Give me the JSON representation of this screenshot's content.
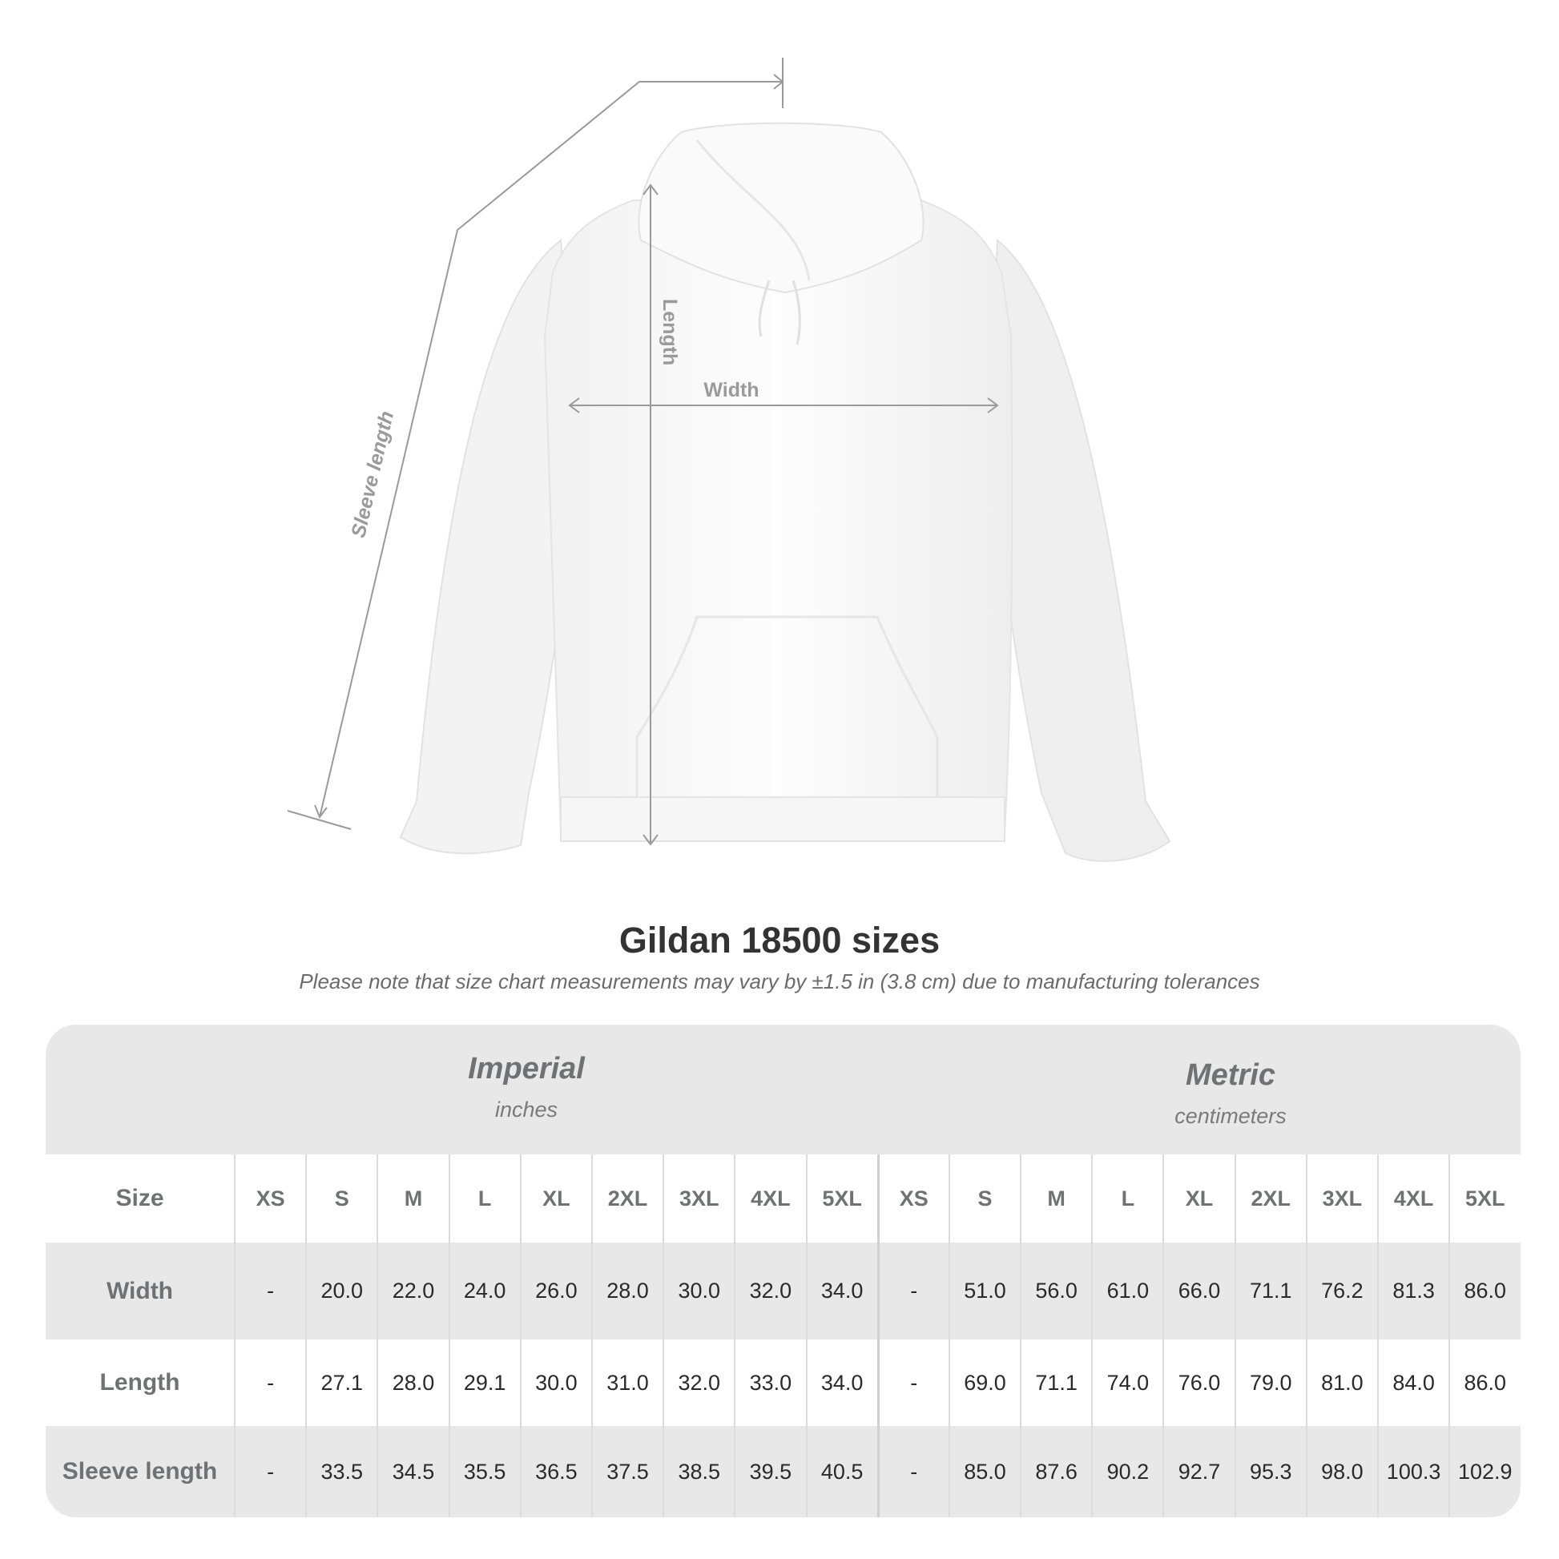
{
  "diagram": {
    "labels": {
      "length": "Length",
      "width": "Width",
      "sleeve": "Sleeve length"
    },
    "garment_color": "#ffffff",
    "line_color": "#9a9a9a"
  },
  "title": "Gildan 18500 sizes",
  "subtitle": "Please note that size chart measurements may vary by ±1.5 in (3.8 cm) due to manufacturing tolerances",
  "table": {
    "imperial": {
      "name": "Imperial",
      "unit": "inches"
    },
    "metric": {
      "name": "Metric",
      "unit": "centimeters"
    },
    "size_label": "Size",
    "sizes": [
      "XS",
      "S",
      "M",
      "L",
      "XL",
      "2XL",
      "3XL",
      "4XL",
      "5XL",
      "XS",
      "S",
      "M",
      "L",
      "XL",
      "2XL",
      "3XL",
      "4XL",
      "5XL"
    ],
    "rows": [
      {
        "label": "Width",
        "values": [
          "-",
          "20.0",
          "22.0",
          "24.0",
          "26.0",
          "28.0",
          "30.0",
          "32.0",
          "34.0",
          "-",
          "51.0",
          "56.0",
          "61.0",
          "66.0",
          "71.1",
          "76.2",
          "81.3",
          "86.0"
        ]
      },
      {
        "label": "Length",
        "values": [
          "-",
          "27.1",
          "28.0",
          "29.1",
          "30.0",
          "31.0",
          "32.0",
          "33.0",
          "34.0",
          "-",
          "69.0",
          "71.1",
          "74.0",
          "76.0",
          "79.0",
          "81.0",
          "84.0",
          "86.0"
        ]
      },
      {
        "label": "Sleeve length",
        "values": [
          "-",
          "33.5",
          "34.5",
          "35.5",
          "36.5",
          "37.5",
          "38.5",
          "39.5",
          "40.5",
          "-",
          "85.0",
          "87.6",
          "90.2",
          "92.7",
          "95.3",
          "98.0",
          "100.3",
          "102.9"
        ]
      }
    ]
  }
}
